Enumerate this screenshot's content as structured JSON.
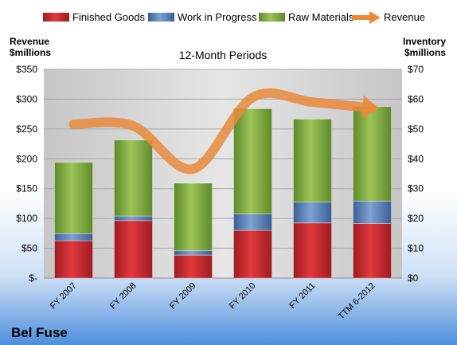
{
  "chart_data": {
    "type": "bar",
    "subtitle": "12-Month Periods",
    "company": "Bel Fuse",
    "ylabel_left": [
      "Revenue",
      "$millions"
    ],
    "ylabel_right": [
      "Inventory",
      "$millions"
    ],
    "categories": [
      "FY 2007",
      "FY 2008",
      "FY 2009",
      "FY 2010",
      "FY 2011",
      "TTM 6-2012"
    ],
    "left_axis": {
      "min": 0,
      "max": 350,
      "ticks": [
        "$-",
        "$50",
        "$100",
        "$150",
        "$200",
        "$250",
        "$300",
        "$350"
      ]
    },
    "right_axis": {
      "min": 0,
      "max": 70,
      "ticks": [
        "$0",
        "$10",
        "$20",
        "$30",
        "$40",
        "$50",
        "$60",
        "$70"
      ]
    },
    "series": [
      {
        "name": "Finished Goods",
        "type": "stacked-bar",
        "axis": "right",
        "color": "#c0262b",
        "values": [
          12.5,
          19.3,
          7.7,
          16.0,
          18.5,
          18.3
        ]
      },
      {
        "name": "Work in Progress",
        "type": "stacked-bar",
        "axis": "right",
        "color": "#4f79b7",
        "values": [
          2.4,
          1.5,
          1.5,
          5.5,
          7.0,
          7.5
        ]
      },
      {
        "name": "Raw Materials",
        "type": "stacked-bar",
        "axis": "right",
        "color": "#7aa23c",
        "values": [
          23.9,
          25.5,
          22.6,
          35.3,
          27.8,
          31.7
        ]
      },
      {
        "name": "Revenue",
        "type": "line",
        "axis": "left",
        "color": "#e98a3b",
        "values": [
          258,
          255,
          183,
          303,
          295,
          285
        ]
      }
    ],
    "legend_position": "top",
    "grid": true
  }
}
